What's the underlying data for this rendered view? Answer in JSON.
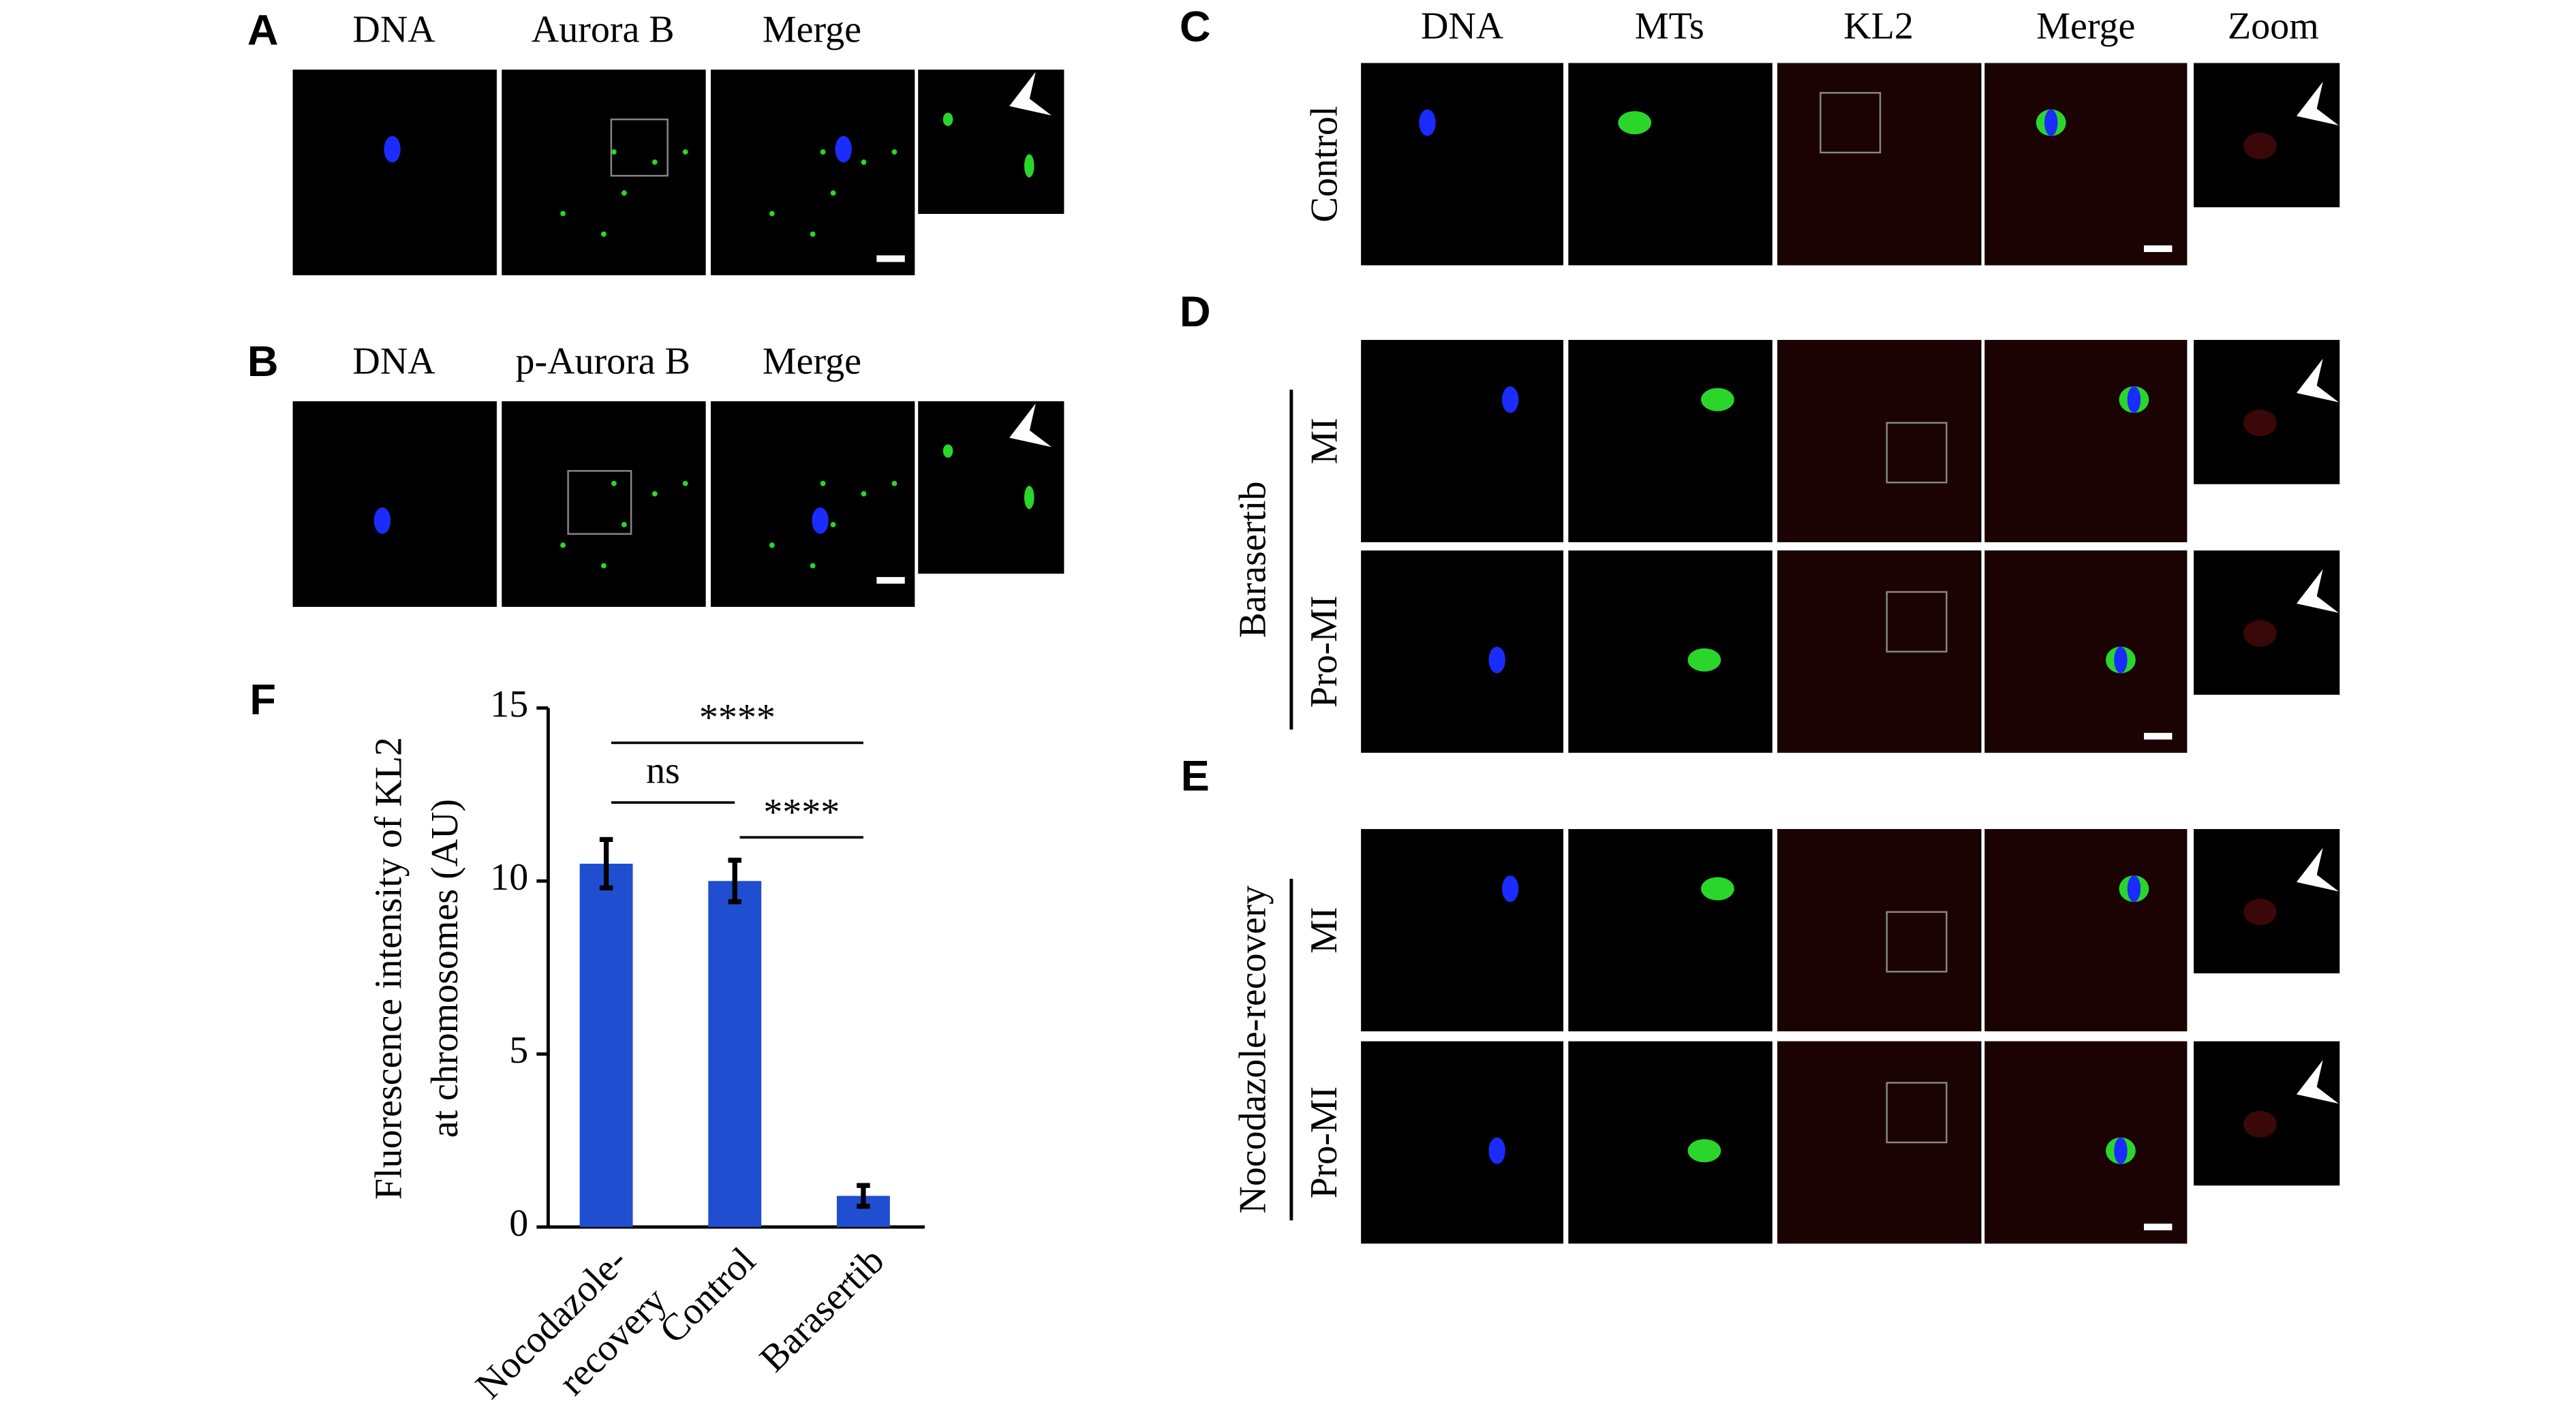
{
  "panels": [
    {
      "label": "A",
      "headers": [
        "DNA",
        "Aurora B",
        "Merge"
      ]
    },
    {
      "label": "B",
      "headers": [
        "DNA",
        "p-Aurora B",
        "Merge"
      ]
    },
    {
      "label": "C",
      "headers": [
        "DNA",
        "MTs",
        "KL2",
        "Merge",
        "Zoom"
      ],
      "rows": [
        "Control"
      ]
    },
    {
      "label": "D",
      "group": "Barasertib",
      "rows": [
        "MI",
        "Pro-MI"
      ]
    },
    {
      "label": "E",
      "group": "Nocodazole-recovery",
      "rows": [
        "MI",
        "Pro-MI"
      ]
    }
  ],
  "chart_data": {
    "type": "bar",
    "label": "F",
    "y_label": [
      "Fluorescence intensity of KL2",
      "at chromosomes (AU)"
    ],
    "categories": [
      [
        "Nocodazole-",
        "recovery"
      ],
      [
        "Control"
      ],
      [
        "Barasertib"
      ]
    ],
    "series": [
      {
        "color": "#1f4ed0",
        "values": [
          10.5,
          10.0,
          0.9
        ],
        "errors": [
          0.7,
          0.6,
          0.3
        ]
      }
    ],
    "ylim": [
      0,
      15
    ],
    "yticks": [
      0,
      5,
      10,
      15
    ],
    "significance": [
      {
        "from": 0,
        "to": 2,
        "label": "****"
      },
      {
        "from": 0,
        "to": 1,
        "label": "ns"
      },
      {
        "from": 1,
        "to": 2,
        "label": "****"
      }
    ]
  }
}
